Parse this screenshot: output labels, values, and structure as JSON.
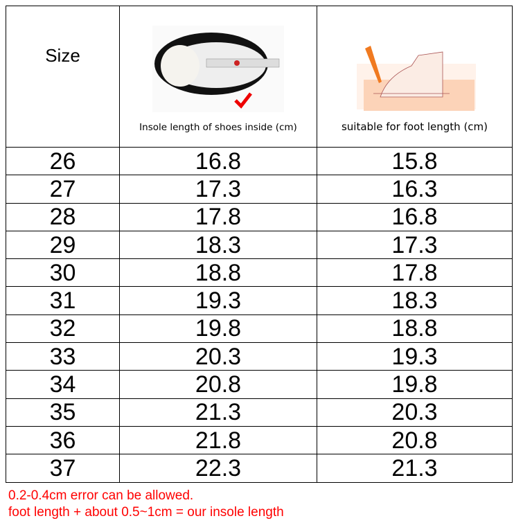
{
  "header": {
    "size_label": "Size",
    "insole_caption": "Insole length of shoes inside (cm)",
    "foot_caption": "suitable for foot length (cm)",
    "insole_image": "shoe-insole-measuring-tape-photo",
    "foot_image": "foot-tracing-pencil-illustration"
  },
  "rows": [
    {
      "size": "26",
      "insole": "16.8",
      "foot": "15.8"
    },
    {
      "size": "27",
      "insole": "17.3",
      "foot": "16.3"
    },
    {
      "size": "28",
      "insole": "17.8",
      "foot": "16.8"
    },
    {
      "size": "29",
      "insole": "18.3",
      "foot": "17.3"
    },
    {
      "size": "30",
      "insole": "18.8",
      "foot": "17.8"
    },
    {
      "size": "31",
      "insole": "19.3",
      "foot": "18.3"
    },
    {
      "size": "32",
      "insole": "19.8",
      "foot": "18.8"
    },
    {
      "size": "33",
      "insole": "20.3",
      "foot": "19.3"
    },
    {
      "size": "34",
      "insole": "20.8",
      "foot": "19.8"
    },
    {
      "size": "35",
      "insole": "21.3",
      "foot": "20.3"
    },
    {
      "size": "36",
      "insole": "21.8",
      "foot": "20.8"
    },
    {
      "size": "37",
      "insole": "22.3",
      "foot": "21.3"
    }
  ],
  "notes": {
    "line1": "0.2-0.4cm error can be allowed.",
    "line2": "foot length + about 0.5~1cm = our insole length",
    "color": "#ff0000"
  }
}
